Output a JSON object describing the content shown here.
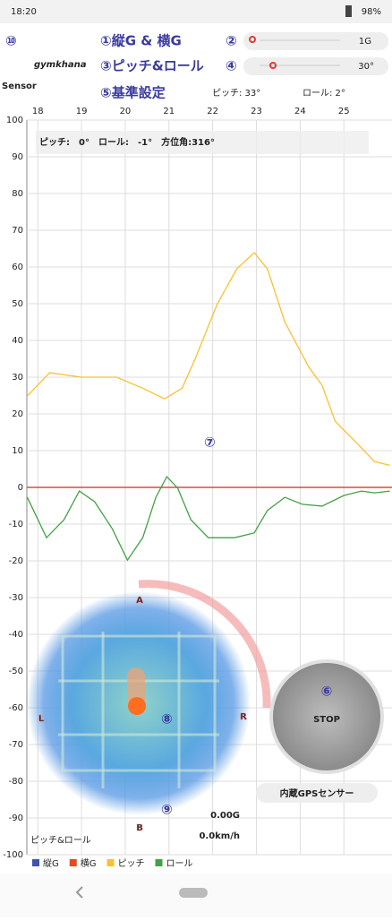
{
  "status_bar": {
    "time": "18:20",
    "battery": "98%"
  },
  "header": {
    "marker_10": "⑩",
    "logo_top": "gymkhana",
    "logo": "Sensor",
    "gforce_label": "①縦G & 横G",
    "marker_2": "②",
    "gforce_scale": "1G",
    "pitch_roll_label": "③ピッチ&ロール",
    "marker_4": "④",
    "angle_scale": "30°",
    "calibrate": "⑤基準設定",
    "pitch_ref": "ピッチ: 33°",
    "roll_ref": "ロール: 2°"
  },
  "chart_data": {
    "type": "line",
    "readout": "ピッチ:　0°　ロール:　-1°　方位角:316°",
    "marker": "⑦",
    "xlim": [
      17.75,
      26.1
    ],
    "xticks": [
      18,
      19,
      20,
      21,
      22,
      23,
      24,
      25
    ],
    "ylim": [
      -100,
      100
    ],
    "yticks": [
      100,
      90,
      80,
      70,
      60,
      50,
      40,
      30,
      20,
      10,
      0,
      -10,
      -20,
      -30,
      -40,
      -50,
      -60,
      -70,
      -80,
      -90,
      -100
    ],
    "grid": true,
    "series": [
      {
        "name": "縦G",
        "color": "#3f51b5",
        "x": [
          17.75,
          26.1
        ],
        "values": [
          0,
          0
        ]
      },
      {
        "name": "横G",
        "color": "#e64a19",
        "x": [
          17.75,
          26.1
        ],
        "values": [
          0,
          0
        ]
      },
      {
        "name": "ピッチ",
        "color": "#fbc02d",
        "x": [
          17.76,
          18.27,
          19,
          19.8,
          20.4,
          20.9,
          21.3,
          21.6,
          22.1,
          22.55,
          22.95,
          23.25,
          23.65,
          24.2,
          24.5,
          24.8,
          25.3,
          25.7,
          26.05
        ],
        "values": [
          24.9,
          31.2,
          30,
          30,
          27,
          24.1,
          27,
          35,
          49.8,
          59.5,
          63.9,
          59.5,
          45,
          32.7,
          27.8,
          18,
          12,
          7,
          6
        ]
      },
      {
        "name": "ロール",
        "color": "#43a047",
        "x": [
          17.76,
          18.2,
          18.6,
          18.95,
          19.3,
          19.7,
          20.05,
          20.4,
          20.7,
          20.95,
          21.2,
          21.5,
          21.9,
          22.5,
          22.95,
          23.25,
          23.65,
          24.05,
          24.5,
          25,
          25.4,
          25.7,
          26.05
        ],
        "values": [
          -2.7,
          -13.7,
          -8.8,
          -1,
          -3.9,
          -11.2,
          -19.8,
          -13.7,
          -2.7,
          2.9,
          -0.2,
          -8.8,
          -13.7,
          -13.7,
          -12.4,
          -6.3,
          -2.7,
          -4.6,
          -5.1,
          -2.2,
          -1,
          -1.5,
          -1
        ]
      }
    ]
  },
  "meter": {
    "top": "A",
    "bottom": "B",
    "left": "L",
    "right": "R",
    "marker_8": "⑧",
    "marker_9": "⑨",
    "g_value": "0.00G",
    "speed": "0.0km/h",
    "mode": "ピッチ&ロール",
    "marker_6": "⑥",
    "stop": "STOP",
    "source": "内蔵GPSセンサー"
  }
}
